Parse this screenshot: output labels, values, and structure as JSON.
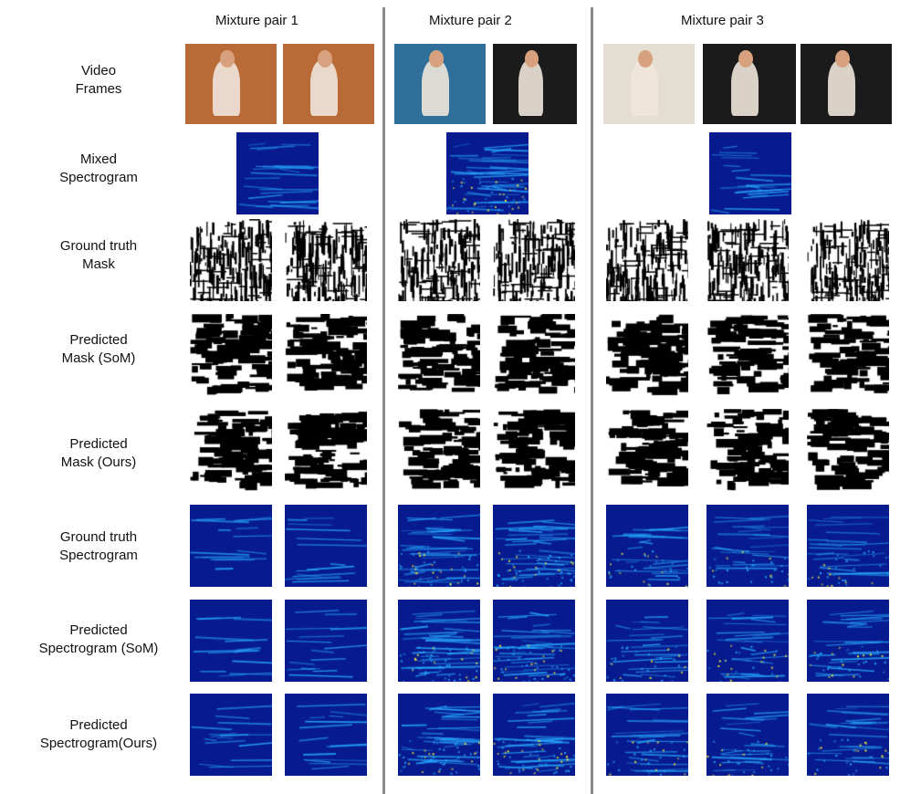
{
  "headers": [
    "Mixture pair 1",
    "Mixture pair 2",
    "Mixture pair 3"
  ],
  "rows": [
    {
      "line1": "Video",
      "line2": "Frames",
      "kind": "frame"
    },
    {
      "line1": "Mixed",
      "line2": "Spectrogram",
      "kind": "mixed"
    },
    {
      "line1": "Ground truth",
      "line2": "Mask",
      "kind": "mask"
    },
    {
      "line1": "Predicted",
      "line2": "Mask (SoM)",
      "kind": "mask"
    },
    {
      "line1": "Predicted",
      "line2": "Mask (Ours)",
      "kind": "mask"
    },
    {
      "line1": "Ground truth",
      "line2": "Spectrogram",
      "kind": "spec"
    },
    {
      "line1": "Predicted",
      "line2": "Spectrogram (SoM)",
      "kind": "spec"
    },
    {
      "line1": "Predicted",
      "line2": "Spectrogram(Ours)",
      "kind": "spec"
    }
  ],
  "colors": {
    "spectrogram_base": "#071b8f",
    "spectrogram_line": "#27a8ff",
    "spectrogram_hot": "#f2e93a",
    "mask_ink": "#000000",
    "divider": "#8a8a8a",
    "frame_wood": "#b86b36",
    "frame_lake": "#2f6f9a",
    "frame_dark": "#1b1b1b",
    "frame_room": "#e3ddd2"
  }
}
